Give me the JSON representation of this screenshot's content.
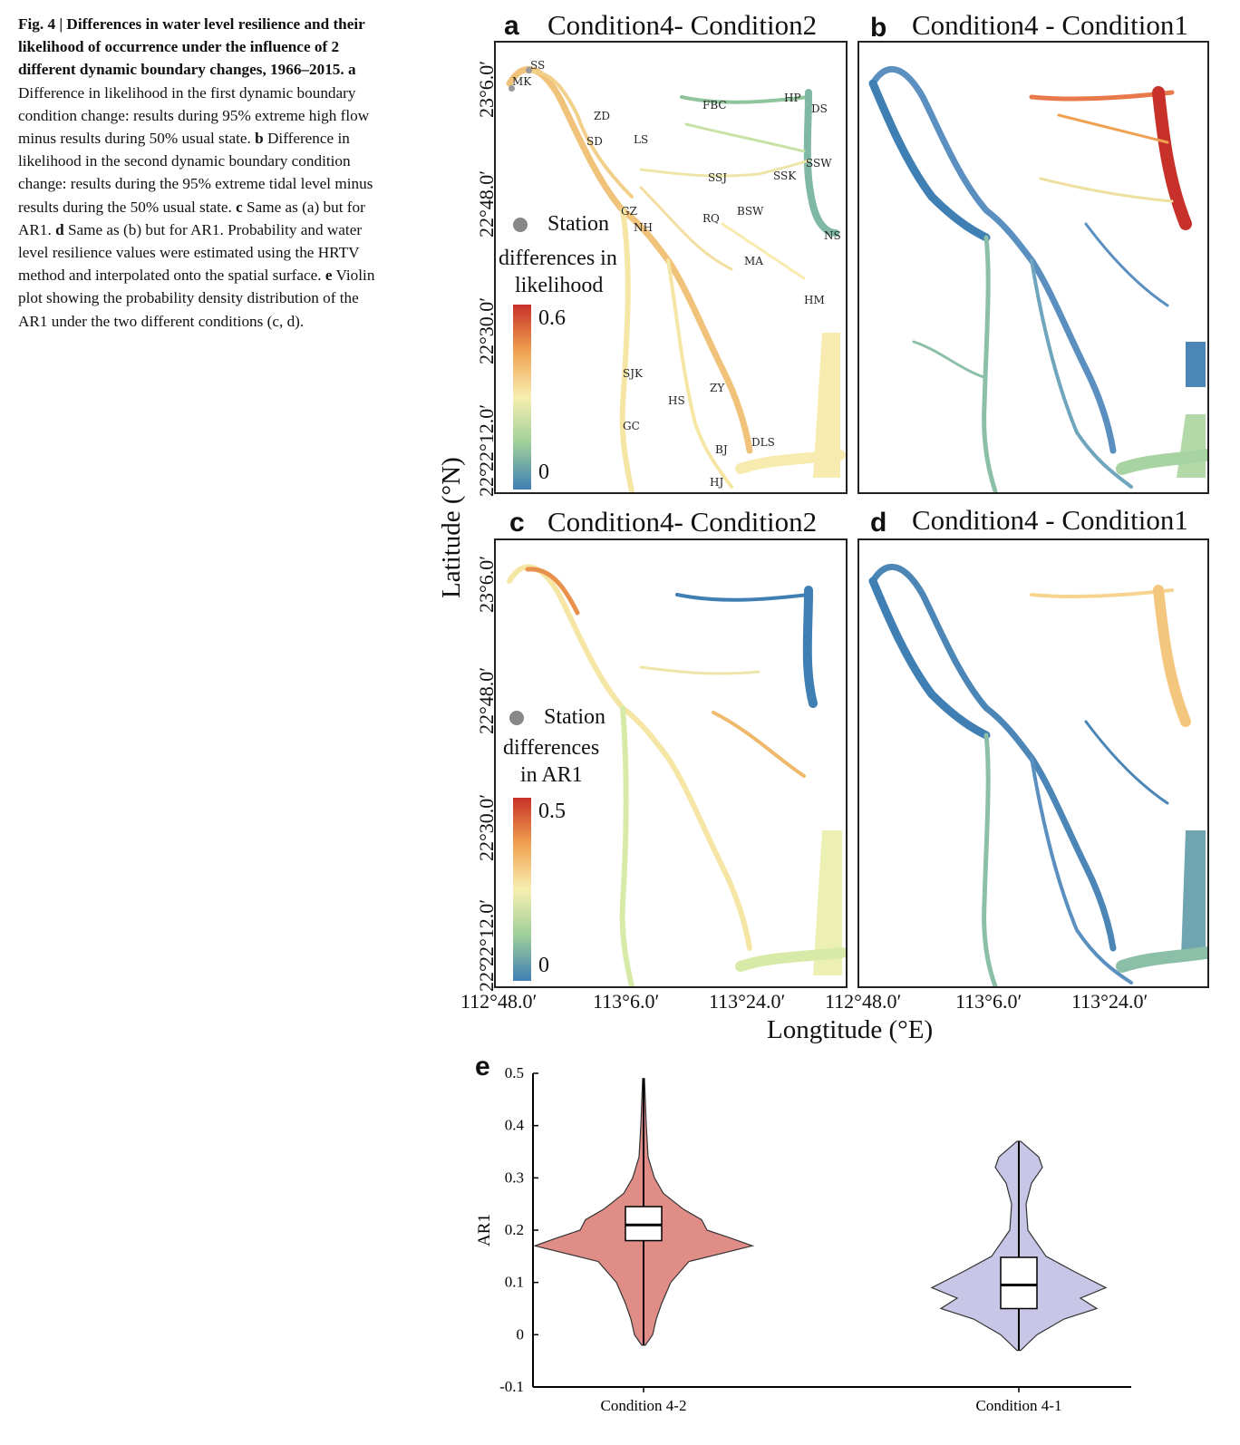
{
  "caption": {
    "bold": "Fig. 4 | Differences in water level resilience and their likelihood of occurrence under the influence of 2 different dynamic boundary changes, 1966–2015.",
    "a_label": "a",
    "a_text": "Difference in likelihood in the first dynamic boundary condition change: results during 95% extreme high flow minus results during 50% usual state.",
    "b_label": "b",
    "b_text": "Difference in likelihood in the second dynamic boundary condition change: results during the 95% extreme tidal level minus results during the 50% usual state.",
    "c_label": "c",
    "c_text": "Same as (a) but for AR1.",
    "d_label": "d",
    "d_text": "Same as (b) but for AR1. Probability and water level resilience values were estimated using the HRTV method and interpolated onto the spatial surface.",
    "e_label": "e",
    "e_text": "Violin plot showing the probability density distribution of the AR1 under the two different conditions (c, d)."
  },
  "panels": {
    "a": {
      "label": "a",
      "title": "Condition4- Condition2"
    },
    "b": {
      "label": "b",
      "title": "Condition4 - Condition1"
    },
    "c": {
      "label": "c",
      "title": "Condition4- Condition2"
    },
    "d": {
      "label": "d",
      "title": "Condition4 - Condition1"
    },
    "e": {
      "label": "e"
    }
  },
  "axes": {
    "ylabel": "Latitude (°N)",
    "xlabel": "Longtitude (°E)",
    "lat_ticks": [
      "23°6.0′",
      "22°48.0′",
      "22°30.0′",
      "22°12.0′",
      "22°"
    ],
    "lon_ticks": [
      "112°48.0′",
      "113°6.0′",
      "113°24.0′",
      "112°48.0′",
      "113°6.0′",
      "113°24.0′"
    ]
  },
  "legend_a": {
    "station": "Station",
    "title1": "differences in",
    "title2": "likelihood",
    "max": "0.6",
    "min": "0"
  },
  "legend_c": {
    "station": "Station",
    "title1": "differences",
    "title2": "in AR1",
    "max": "0.5",
    "min": "0"
  },
  "stations": [
    "SS",
    "MK",
    "ZD",
    "SD",
    "LS",
    "FBC",
    "HP",
    "DS",
    "SSJ",
    "SSK",
    "SSW",
    "GZ",
    "NH",
    "RQ",
    "BSW",
    "NS",
    "MA",
    "HM",
    "SJK",
    "HS",
    "ZY",
    "GC",
    "BJ",
    "DLS",
    "HJ"
  ],
  "colors": {
    "red": "#c8312a",
    "orange": "#f0a050",
    "yellow": "#f7efb0",
    "green": "#9fcf9a",
    "blue": "#3f7fb4"
  },
  "chart_data": {
    "type": "violin",
    "categories": [
      "Condition 4-2",
      "Condition 4-1"
    ],
    "ylabel": "AR1",
    "ylim": [
      -0.1,
      0.5
    ],
    "yticks": [
      "0.5",
      "0.4",
      "0.3",
      "0.2",
      "0.1",
      "0",
      "-0.1"
    ],
    "series": [
      {
        "name": "Condition 4-2",
        "color": "#e08c87",
        "min": -0.02,
        "max": 0.49,
        "q1": 0.18,
        "median": 0.21,
        "q3": 0.245
      },
      {
        "name": "Condition 4-1",
        "color": "#c8c6e6",
        "min": -0.03,
        "max": 0.37,
        "q1": 0.05,
        "median": 0.095,
        "q3": 0.148
      }
    ]
  }
}
